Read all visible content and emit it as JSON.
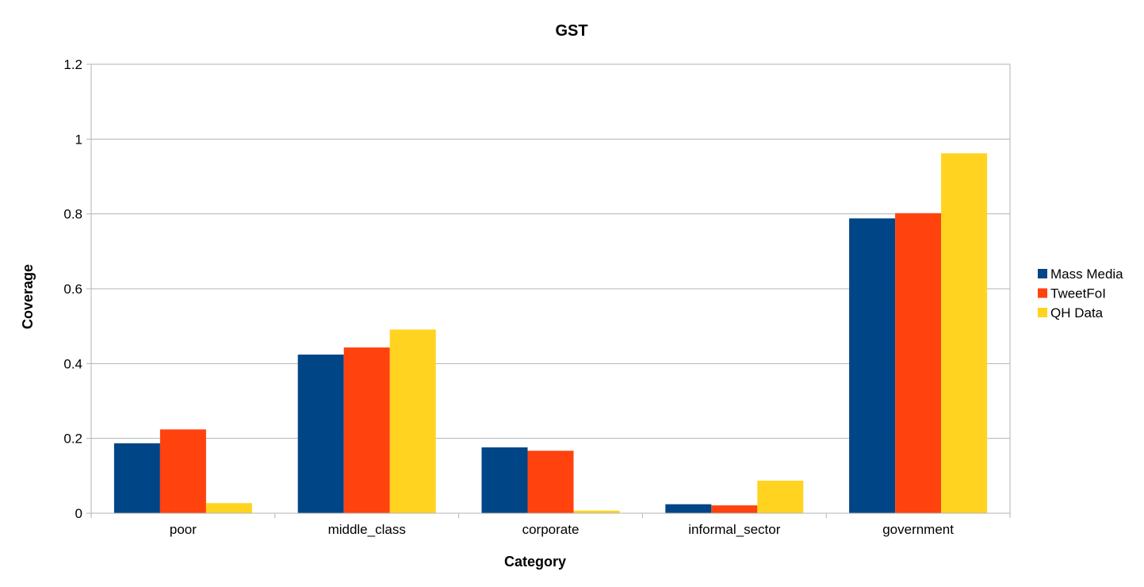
{
  "chart_data": {
    "type": "bar",
    "title": "GST",
    "xlabel": "Category",
    "ylabel": "Coverage",
    "categories": [
      "poor",
      "middle_class",
      "corporate",
      "informal_sector",
      "government"
    ],
    "series": [
      {
        "name": "Mass Media",
        "color": "#004586",
        "values": [
          0.187,
          0.424,
          0.176,
          0.024,
          0.788
        ]
      },
      {
        "name": "TweetFoI",
        "color": "#ff420e",
        "values": [
          0.224,
          0.443,
          0.167,
          0.021,
          0.802
        ]
      },
      {
        "name": "QH Data",
        "color": "#ffd320",
        "values": [
          0.027,
          0.491,
          0.007,
          0.087,
          0.962
        ]
      }
    ],
    "ylim": [
      0,
      1.2
    ],
    "yticks": [
      0,
      0.2,
      0.4,
      0.6,
      0.8,
      1,
      1.2
    ],
    "ytick_labels": [
      "0",
      "0.2",
      "0.4",
      "0.6",
      "0.8",
      "1",
      "1.2"
    ],
    "grid": true,
    "legend_position": "right"
  }
}
